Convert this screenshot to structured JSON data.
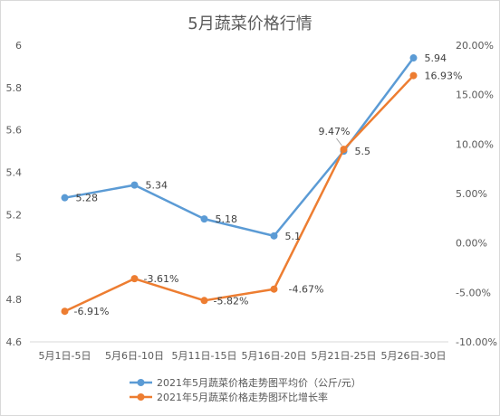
{
  "chart_data": {
    "type": "line",
    "title": "5月蔬菜价格行情",
    "categories": [
      "5月1日-5日",
      "5月6日-10日",
      "5月11日-15日",
      "5月16日-20日",
      "5月21日-25日",
      "5月26日-30日"
    ],
    "series": [
      {
        "name": "2021年5月蔬菜价格走势图平均价（公斤/元）",
        "axis": "left",
        "color": "#5B9BD5",
        "values": [
          5.28,
          5.34,
          5.18,
          5.1,
          5.5,
          5.94
        ],
        "labels": [
          "5.28",
          "5.34",
          "5.18",
          "5.1",
          "5.5",
          "5.94"
        ]
      },
      {
        "name": "2021年5月蔬菜价格走势图环比增长率",
        "axis": "right",
        "color": "#ED7D31",
        "values": [
          -6.91,
          -3.61,
          -5.82,
          -4.67,
          9.47,
          16.93
        ],
        "labels": [
          "-6.91%",
          "-3.61%",
          "-5.82%",
          "-4.67%",
          "9.47%",
          "16.93%"
        ]
      }
    ],
    "y_left": {
      "min": 4.6,
      "max": 6.0,
      "ticks": [
        "4.6",
        "4.8",
        "5",
        "5.2",
        "5.4",
        "5.6",
        "5.8",
        "6"
      ]
    },
    "y_right": {
      "min": -10,
      "max": 20,
      "ticks": [
        "-10.00%",
        "-5.00%",
        "0.00%",
        "5.00%",
        "10.00%",
        "15.00%",
        "20.00%"
      ]
    },
    "grid": false,
    "legend": "bottom"
  }
}
